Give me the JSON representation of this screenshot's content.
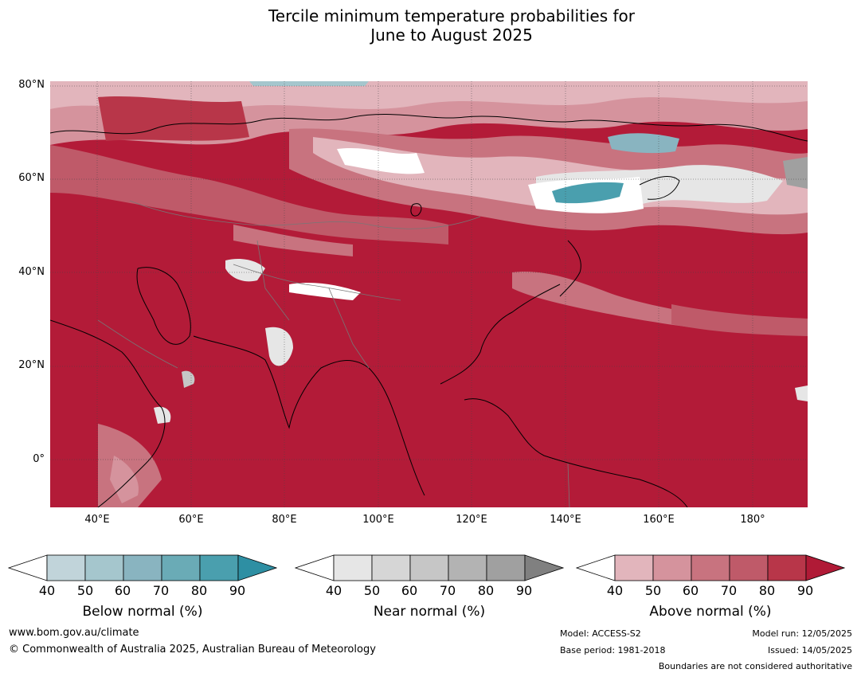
{
  "title_line1": "Tercile minimum temperature probabilities for",
  "title_line2": "June to August 2025",
  "map": {
    "lat_labels": [
      "80°N",
      "60°N",
      "40°N",
      "20°N",
      "0°"
    ],
    "lon_labels": [
      "40°E",
      "60°E",
      "80°E",
      "100°E",
      "120°E",
      "140°E",
      "160°E",
      "180°"
    ],
    "extent": {
      "lon_min": 30,
      "lon_max": 191,
      "lat_min": -10,
      "lat_max": 81
    }
  },
  "legends": [
    {
      "label": "Below normal (%)",
      "ticks": [
        "40",
        "50",
        "60",
        "70",
        "80",
        "90"
      ],
      "colors": [
        "#c1d4da",
        "#a5c6cd",
        "#89b4c0",
        "#6aabb6",
        "#4a9fae",
        "#2e8fa3"
      ]
    },
    {
      "label": "Near normal (%)",
      "ticks": [
        "40",
        "50",
        "60",
        "70",
        "80",
        "90"
      ],
      "colors": [
        "#e6e6e6",
        "#d6d6d6",
        "#c6c6c6",
        "#b3b3b3",
        "#a0a0a0",
        "#808080"
      ]
    },
    {
      "label": "Above normal (%)",
      "ticks": [
        "40",
        "50",
        "60",
        "70",
        "80",
        "90"
      ],
      "colors": [
        "#e2b5bc",
        "#d5939d",
        "#c8737f",
        "#bf5a69",
        "#b83649",
        "#b01a36"
      ]
    }
  ],
  "footer": {
    "website": "www.bom.gov.au/climate",
    "copyright": "© Commonwealth of Australia 2025, Australian Bureau of Meteorology",
    "model": "Model: ACCESS-S2",
    "base_period": "Base period: 1981-2018",
    "model_run": "Model run: 12/05/2025",
    "issued": "Issued: 14/05/2025",
    "disclaimer": "Boundaries are not considered authoritative"
  }
}
